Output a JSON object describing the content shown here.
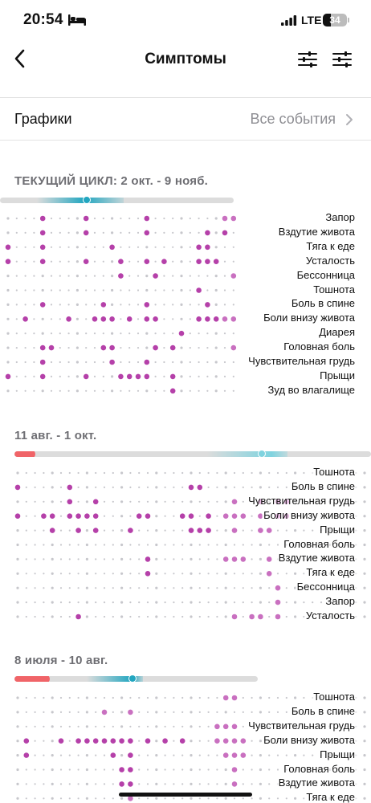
{
  "status_bar": {
    "time": "20:54",
    "network": "LTE",
    "battery_percent": "34",
    "battery_level": 0.34,
    "icons": [
      "bed-icon",
      "signal-icon",
      "battery-icon"
    ]
  },
  "nav": {
    "title": "Симптомы",
    "back_icon": "chevron-left-icon",
    "filter_icon_1": "sliders-icon",
    "filter_icon_2": "sliders-icon"
  },
  "graphs_row": {
    "label": "Графики",
    "value": "Все события",
    "chevron_icon": "chevron-right-icon"
  },
  "colors": {
    "dot_strong": "#b540a9",
    "dot_mid": "#c970c0",
    "dot_light": "#e2b4dc",
    "dot_grey": "#c7c7cc",
    "period": "#f06468",
    "accent": "#22a6c0"
  },
  "cycles": [
    {
      "title": "ТЕКУЩИЙ ЦИКЛ: 2 окт. - 9 нояб.",
      "symptoms": [
        {
          "label": "Запор",
          "days": [
            4,
            9,
            16,
            25,
            26
          ],
          "faint": [
            25,
            26
          ]
        },
        {
          "label": "Вздутие живота",
          "days": [
            4,
            9,
            16,
            23,
            25
          ]
        },
        {
          "label": "Тяга к еде",
          "days": [
            0,
            4,
            12,
            22,
            23
          ]
        },
        {
          "label": "Усталость",
          "days": [
            0,
            4,
            9,
            13,
            16,
            18,
            22,
            23,
            24
          ]
        },
        {
          "label": "Бессонница",
          "days": [
            13,
            17,
            26
          ],
          "faint": [
            26
          ]
        },
        {
          "label": "Тошнота",
          "days": [
            22
          ]
        },
        {
          "label": "Боль в спине",
          "days": [
            4,
            11,
            16,
            23
          ]
        },
        {
          "label": "Боли внизу живота",
          "days": [
            2,
            7,
            10,
            11,
            12,
            14,
            16,
            17,
            22,
            23,
            24,
            25,
            26
          ],
          "faint": [
            25,
            26
          ]
        },
        {
          "label": "Диарея",
          "days": [
            20
          ]
        },
        {
          "label": "Головная боль",
          "days": [
            4,
            5,
            11,
            12,
            17,
            19,
            26
          ],
          "faint": [
            26
          ]
        },
        {
          "label": "Чувствительная грудь",
          "days": [
            4,
            12,
            16
          ]
        },
        {
          "label": "Прыщи",
          "days": [
            0,
            4,
            9,
            13,
            14,
            15,
            16,
            19
          ]
        },
        {
          "label": "Зуд во влагалище",
          "days": [
            19
          ]
        }
      ]
    },
    {
      "title": "11 авг. - 1 окт.",
      "symptoms": [
        {
          "label": "Тошнота",
          "days": []
        },
        {
          "label": "Боль в спине",
          "days": [
            0,
            6,
            20,
            21
          ]
        },
        {
          "label": "Чувствительная грудь",
          "days": [
            6,
            9,
            25,
            28,
            30,
            31
          ],
          "faint": [
            25,
            28,
            30,
            31
          ]
        },
        {
          "label": "Боли внизу живота",
          "days": [
            0,
            3,
            4,
            6,
            7,
            8,
            9,
            14,
            15,
            19,
            20,
            22,
            24,
            25,
            26,
            28,
            30,
            31
          ],
          "faint": [
            24,
            25,
            26,
            28,
            30,
            31
          ]
        },
        {
          "label": "Прыщи",
          "days": [
            4,
            7,
            9,
            13,
            20,
            21,
            22,
            25,
            28,
            29
          ],
          "faint": [
            25,
            28,
            29
          ]
        },
        {
          "label": "Головная боль",
          "days": []
        },
        {
          "label": "Вздутие живота",
          "days": [
            15,
            24,
            25,
            26,
            29
          ],
          "faint": [
            24,
            25,
            26,
            29
          ]
        },
        {
          "label": "Тяга к еде",
          "days": [
            15,
            29
          ],
          "faint": [
            29
          ]
        },
        {
          "label": "Бессонница",
          "days": [
            30
          ],
          "faint": [
            30
          ]
        },
        {
          "label": "Запор",
          "days": [
            30
          ],
          "faint": [
            30
          ]
        },
        {
          "label": "Усталость",
          "days": [
            7,
            25,
            27,
            28,
            30
          ],
          "faint": [
            25,
            27,
            28,
            30
          ]
        }
      ]
    },
    {
      "title": "8 июля - 10 авг.",
      "symptoms": [
        {
          "label": "Тошнота",
          "days": [
            24,
            25
          ],
          "faint": [
            24,
            25
          ]
        },
        {
          "label": "Боль в спине",
          "days": [
            10,
            13
          ],
          "faint": [
            10,
            13
          ]
        },
        {
          "label": "Чувствительная грудь",
          "days": [
            23,
            24,
            25
          ],
          "faint": [
            23,
            24,
            25
          ]
        },
        {
          "label": "Боли внизу живота",
          "days": [
            1,
            5,
            7,
            8,
            9,
            10,
            11,
            12,
            13,
            15,
            17,
            19,
            23,
            24,
            25,
            26
          ],
          "faint": [
            23,
            24,
            25,
            26
          ]
        },
        {
          "label": "Прыщи",
          "days": [
            1,
            11,
            13,
            24,
            25,
            26
          ],
          "faint": [
            24,
            25,
            26
          ]
        },
        {
          "label": "Головная боль",
          "days": [
            12,
            13,
            25
          ],
          "faint": [
            25
          ]
        },
        {
          "label": "Вздутие живота",
          "days": [
            12,
            13,
            25
          ],
          "faint": [
            25
          ]
        },
        {
          "label": "Тяга к еде",
          "days": [
            13
          ],
          "faint": [
            13
          ]
        }
      ]
    }
  ]
}
